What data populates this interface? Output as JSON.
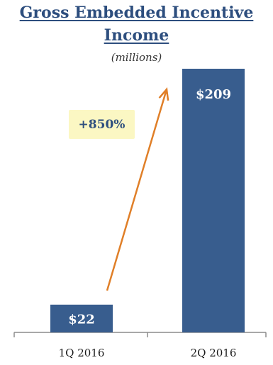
{
  "chart_data": {
    "type": "bar",
    "title_line1": "Gross Embedded Incentive",
    "title_line2": "Income",
    "subtitle": "(millions)",
    "categories": [
      "1Q 2016",
      "2Q 2016"
    ],
    "values": [
      22,
      209
    ],
    "data_labels": [
      "$22",
      "$209"
    ],
    "ylim": [
      0,
      209
    ],
    "xlabel": "",
    "ylabel": "",
    "grid": false,
    "annotation": "+850%",
    "colors": {
      "bar": "#385d8e",
      "title": "#2d4e7e",
      "arrow": "#e07f28",
      "callout_bg": "#fbf7c3",
      "axis": "#8c8c8c"
    }
  }
}
